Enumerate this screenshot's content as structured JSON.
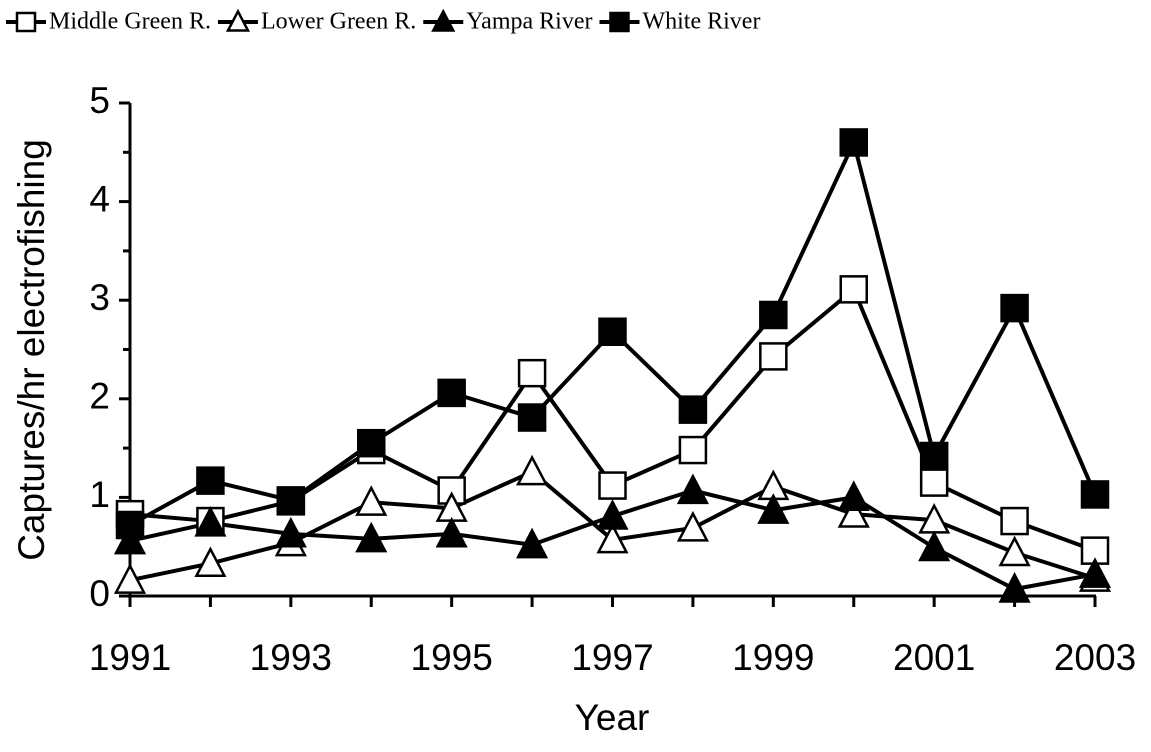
{
  "chart_data": {
    "type": "line",
    "x_label": "Year",
    "y_label": "Captures/hr electrofishing",
    "x": [
      1991,
      1992,
      1993,
      1994,
      1995,
      1996,
      1997,
      1998,
      1999,
      2000,
      2001,
      2002,
      2003
    ],
    "xlim": [
      1991,
      2003
    ],
    "xticks": [
      1991,
      1993,
      1995,
      1997,
      1999,
      2001,
      2003
    ],
    "xminorticks": [
      1992,
      1994,
      1996,
      1998,
      2000,
      2002
    ],
    "ylim": [
      0,
      5
    ],
    "yticks": [
      0,
      1,
      2,
      3,
      4,
      5
    ],
    "yminorticks": [
      0.5,
      1.5,
      2.5,
      3.5,
      4.5
    ],
    "grid": false,
    "legend": "top",
    "series": [
      {
        "name": "Middle Green R.",
        "color": "#000000",
        "marker": "square",
        "filled": false,
        "values": [
          0.83,
          0.76,
          0.96,
          1.48,
          1.07,
          2.26,
          1.12,
          1.48,
          2.43,
          3.11,
          1.15,
          0.76,
          0.46
        ]
      },
      {
        "name": "Lower Green R.",
        "color": "#000000",
        "marker": "triangle",
        "filled": false,
        "values": [
          0.16,
          0.33,
          0.54,
          0.95,
          0.89,
          1.26,
          0.57,
          0.69,
          1.11,
          0.83,
          0.77,
          0.44,
          0.18
        ]
      },
      {
        "name": "Yampa River",
        "color": "#000000",
        "marker": "triangle",
        "filled": true,
        "values": [
          0.56,
          0.74,
          0.63,
          0.58,
          0.63,
          0.52,
          0.81,
          1.07,
          0.87,
          1.0,
          0.49,
          0.07,
          0.22
        ]
      },
      {
        "name": "White River",
        "color": "#000000",
        "marker": "square",
        "filled": true,
        "values": [
          0.72,
          1.17,
          0.97,
          1.55,
          2.06,
          1.81,
          2.68,
          1.89,
          2.85,
          4.6,
          1.42,
          2.92,
          1.03
        ]
      }
    ]
  }
}
